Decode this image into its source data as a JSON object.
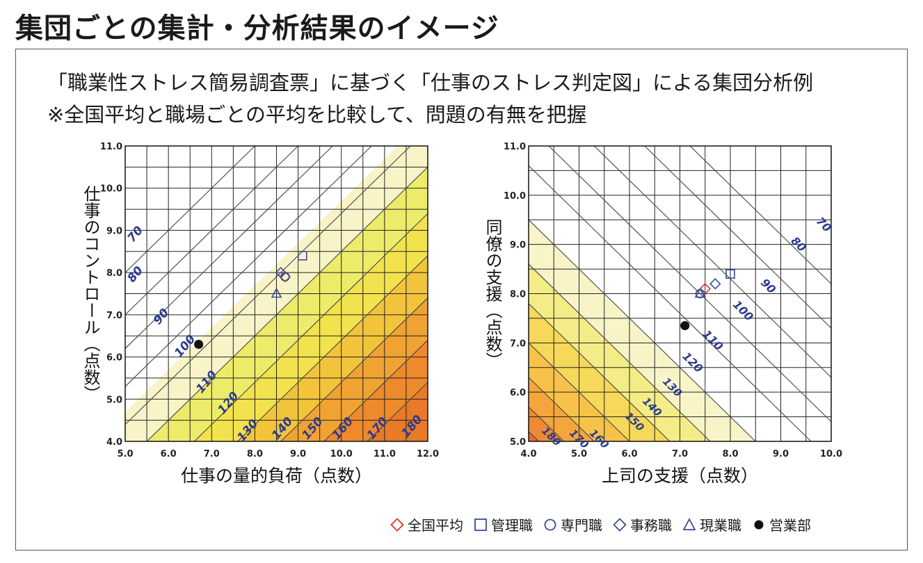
{
  "title": "集団ごとの集計・分析結果のイメージ",
  "subtitle1": "「職業性ストレス簡易調査票」に基づく「仕事のストレス判定図」による集団分析例",
  "subtitle2": "※全国平均と職場ごとの平均を比較して、問題の有無を把握",
  "legend": [
    {
      "label": "全国平均",
      "marker": "diamond",
      "color": "#d9342b",
      "fill": "none"
    },
    {
      "label": "管理職",
      "marker": "square",
      "color": "#3a4a9a",
      "fill": "none"
    },
    {
      "label": "専門職",
      "marker": "circle",
      "color": "#3a4a9a",
      "fill": "none"
    },
    {
      "label": "事務職",
      "marker": "diamond",
      "color": "#3a4a9a",
      "fill": "none"
    },
    {
      "label": "現業職",
      "marker": "triangle",
      "color": "#3a4a9a",
      "fill": "none"
    },
    {
      "label": "営業部",
      "marker": "dot",
      "color": "#111111",
      "fill": "#111111"
    }
  ],
  "chart_data": [
    {
      "type": "scatter",
      "xlabel": "仕事の量的負荷（点数）",
      "ylabel": "仕事のコントロール（点数）",
      "xlim": [
        5.0,
        12.0
      ],
      "ylim": [
        4.0,
        11.0
      ],
      "xticks": [
        "5.0",
        "6.0",
        "7.0",
        "8.0",
        "9.0",
        "10.0",
        "11.0",
        "12.0"
      ],
      "yticks": [
        "4.0",
        "5.0",
        "6.0",
        "7.0",
        "8.0",
        "9.0",
        "10.0",
        "11.0"
      ],
      "grid": true,
      "contour_labels": [
        "70",
        "80",
        "90",
        "100",
        "110",
        "120",
        "130",
        "140",
        "150",
        "160",
        "170",
        "180"
      ],
      "series": [
        {
          "name": "全国平均",
          "marker": "diamond",
          "x": 8.7,
          "y": 7.9
        },
        {
          "name": "管理職",
          "marker": "square",
          "x": 9.1,
          "y": 8.4
        },
        {
          "name": "専門職",
          "marker": "circle",
          "x": 8.7,
          "y": 7.9
        },
        {
          "name": "事務職",
          "marker": "diamond",
          "x": 8.6,
          "y": 8.0
        },
        {
          "name": "現業職",
          "marker": "triangle",
          "x": 8.5,
          "y": 7.5
        },
        {
          "name": "営業部",
          "marker": "dot",
          "x": 6.7,
          "y": 6.3
        }
      ]
    },
    {
      "type": "scatter",
      "xlabel": "上司の支援（点数）",
      "ylabel": "同僚の支援（点数）",
      "xlim": [
        4.0,
        10.0
      ],
      "ylim": [
        5.0,
        11.0
      ],
      "xticks": [
        "4.0",
        "5.0",
        "6.0",
        "7.0",
        "8.0",
        "9.0",
        "10.0"
      ],
      "yticks": [
        "5.0",
        "6.0",
        "7.0",
        "8.0",
        "9.0",
        "10.0",
        "11.0"
      ],
      "grid": true,
      "contour_labels": [
        "70",
        "80",
        "90",
        "100",
        "110",
        "120",
        "130",
        "140",
        "150",
        "160",
        "170",
        "180"
      ],
      "series": [
        {
          "name": "全国平均",
          "marker": "diamond",
          "x": 7.5,
          "y": 8.1
        },
        {
          "name": "管理職",
          "marker": "square",
          "x": 8.0,
          "y": 8.4
        },
        {
          "name": "専門職",
          "marker": "circle",
          "x": 7.4,
          "y": 8.0
        },
        {
          "name": "事務職",
          "marker": "diamond",
          "x": 7.7,
          "y": 8.2
        },
        {
          "name": "現業職",
          "marker": "triangle",
          "x": 7.4,
          "y": 8.0
        },
        {
          "name": "営業部",
          "marker": "dot",
          "x": 7.1,
          "y": 7.35
        }
      ]
    }
  ]
}
